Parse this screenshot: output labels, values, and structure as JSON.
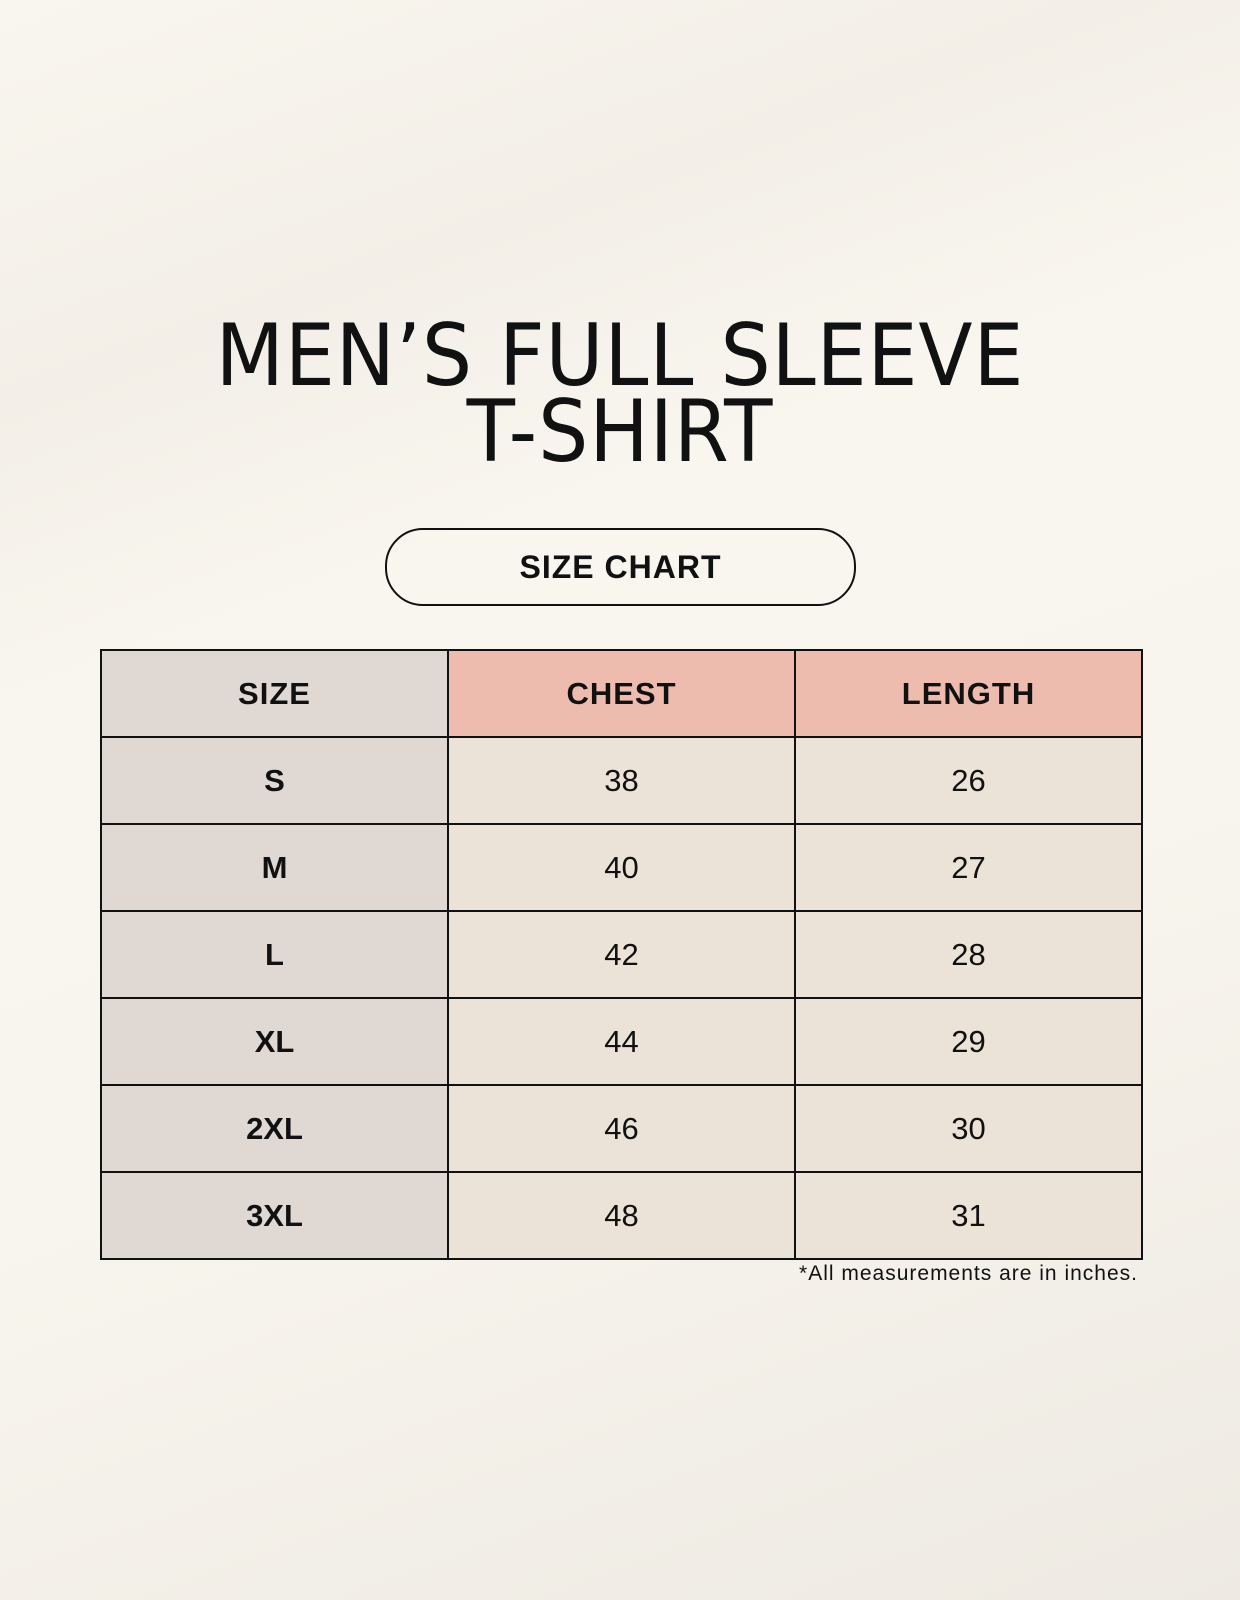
{
  "title": {
    "line1": "MEN’S FULL SLEEVE",
    "line2": "T-SHIRT"
  },
  "badge": "SIZE CHART",
  "table": {
    "headers": [
      "SIZE",
      "CHEST",
      "LENGTH"
    ],
    "rows": [
      [
        "S",
        "38",
        "26"
      ],
      [
        "M",
        "40",
        "27"
      ],
      [
        "L",
        "42",
        "28"
      ],
      [
        "XL",
        "44",
        "29"
      ],
      [
        "2XL",
        "46",
        "30"
      ],
      [
        "3XL",
        "48",
        "31"
      ]
    ]
  },
  "footnote": "*All measurements are in inches.",
  "colors": {
    "size_column": "#e0d8d2",
    "header_accent": "#edbcae",
    "cells": "#ebe3d8",
    "background": "#f9f6ef"
  }
}
